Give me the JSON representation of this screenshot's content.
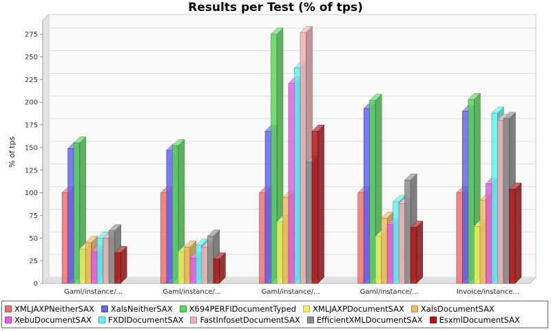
{
  "chart_data": {
    "type": "bar",
    "title": "Results per Test (% of tps)",
    "ylabel": "% of tps",
    "xlabel": "",
    "ylim": [
      0,
      290
    ],
    "yticks": [
      0,
      25,
      50,
      75,
      100,
      125,
      150,
      175,
      200,
      225,
      250,
      275
    ],
    "categories": [
      "Gaml/instance/...",
      "Gaml/instance/...",
      "Gaml/instance/...",
      "Gaml/instance/...",
      "Invoice/instance..."
    ],
    "grid": true,
    "legend_position": "bottom",
    "series": [
      {
        "name": "XMLJAXPNeitherSAX",
        "color": "#f07070",
        "values": [
          100,
          100,
          100,
          100,
          100
        ]
      },
      {
        "name": "XalsNeitherSAX",
        "color": "#6464f0",
        "values": [
          149,
          147,
          168,
          193,
          190
        ]
      },
      {
        "name": "X694PERFIDocumentTyped",
        "color": "#5cd65c",
        "values": [
          155,
          152,
          275,
          202,
          203
        ]
      },
      {
        "name": "XMLJAXPDocumentSAX",
        "color": "#f0f060",
        "values": [
          38,
          35,
          68,
          52,
          63
        ]
      },
      {
        "name": "XalsDocumentSAX",
        "color": "#f0b860",
        "values": [
          45,
          40,
          95,
          72,
          92
        ]
      },
      {
        "name": "XebuDocumentSAX",
        "color": "#e060e0",
        "values": [
          35,
          28,
          221,
          65,
          110
        ]
      },
      {
        "name": "FXDIDocumentSAX",
        "color": "#60f0f0",
        "values": [
          50,
          42,
          238,
          90,
          188
        ]
      },
      {
        "name": "FastInfosetDocumentSAX",
        "color": "#f0b0b0",
        "values": [
          50,
          40,
          277,
          88,
          180
        ]
      },
      {
        "name": "EfficientXMLDocumentSAX",
        "color": "#8c8c8c",
        "values": [
          58,
          52,
          134,
          114,
          182
        ]
      },
      {
        "name": "EsxmlDocumentSAX",
        "color": "#b01818",
        "values": [
          34,
          27,
          168,
          62,
          104
        ]
      }
    ]
  }
}
